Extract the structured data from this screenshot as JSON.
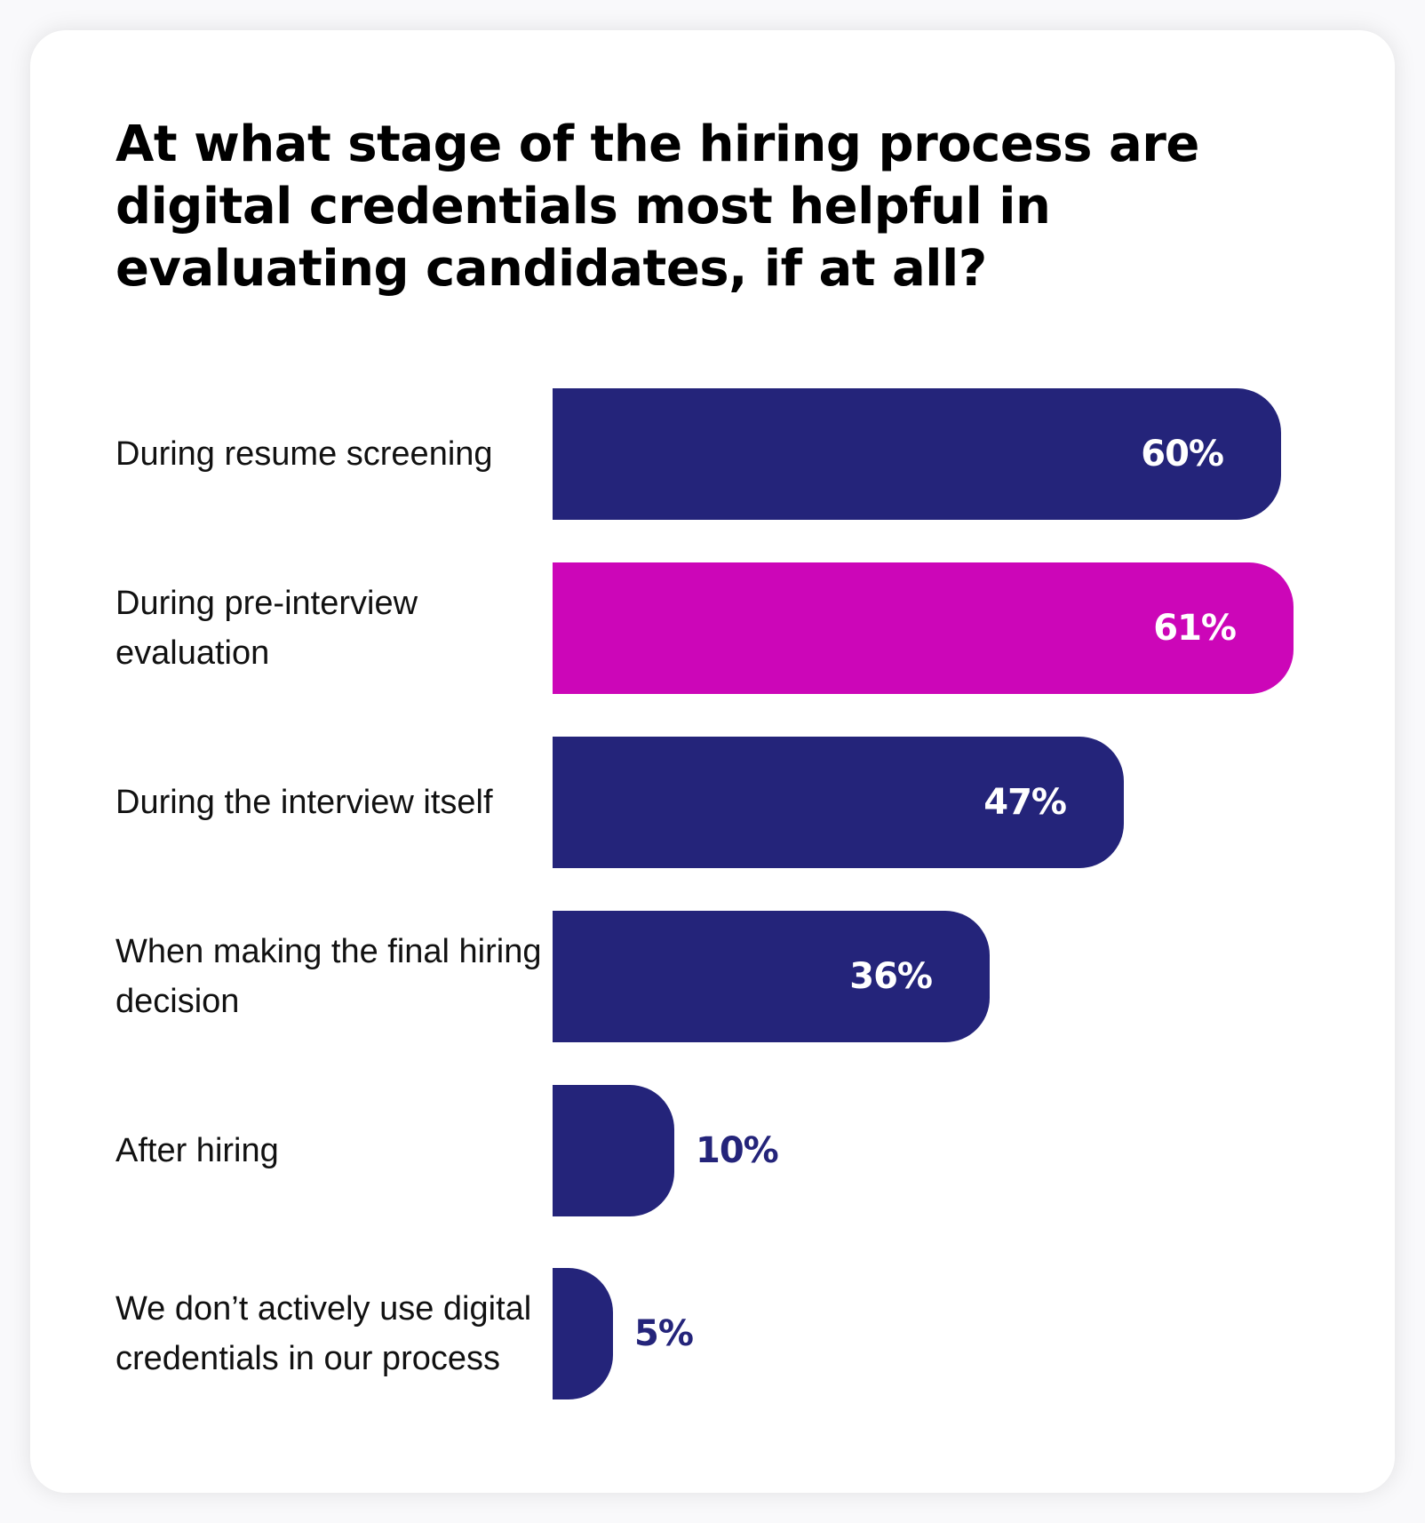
{
  "colors": {
    "primary": "#24247a",
    "highlight": "#cc06b8",
    "label_inside": "#ffffff"
  },
  "chart_data": {
    "type": "bar",
    "orientation": "horizontal",
    "title": "At what stage of the hiring process are digital credentials most helpful in evaluating candidates, if at all?",
    "xlabel": "",
    "ylabel": "",
    "unit": "%",
    "xlim": [
      0,
      61
    ],
    "grid": false,
    "categories": [
      "During resume screening",
      "During pre-interview evaluation",
      "During the interview itself",
      "When making the final hiring decision",
      "After hiring",
      "We don’t actively use digital credentials in our process"
    ],
    "values": [
      60,
      61,
      47,
      36,
      10,
      5
    ],
    "value_labels": [
      "60%",
      "61%",
      "47%",
      "36%",
      "10%",
      "5%"
    ],
    "highlighted_category": "During pre-interview evaluation"
  }
}
